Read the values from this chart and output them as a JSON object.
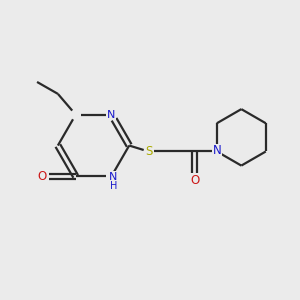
{
  "bg_color": "#ebebeb",
  "bond_color": "#2a2a2a",
  "N_color": "#1818cc",
  "O_color": "#cc1818",
  "S_color": "#aaaa00",
  "line_width": 1.6,
  "figsize": [
    3.0,
    3.0
  ],
  "dpi": 100,
  "xlim": [
    0,
    10
  ],
  "ylim": [
    0,
    10
  ]
}
